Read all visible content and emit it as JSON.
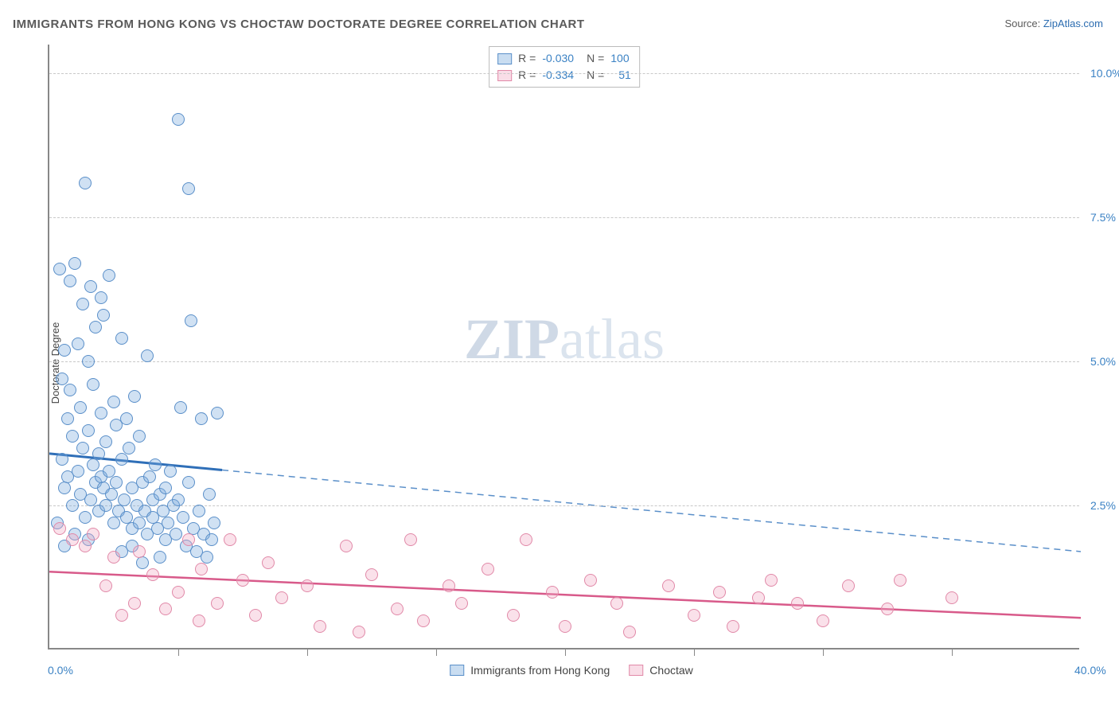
{
  "title": "IMMIGRANTS FROM HONG KONG VS CHOCTAW DOCTORATE DEGREE CORRELATION CHART",
  "source_label": "Source: ",
  "source_link": "ZipAtlas.com",
  "watermark": {
    "bold": "ZIP",
    "rest": "atlas"
  },
  "chart": {
    "type": "scatter",
    "ylabel": "Doctorate Degree",
    "xlim": [
      0,
      40
    ],
    "ylim": [
      0,
      10.5
    ],
    "x_tick_step": 5,
    "y_ticks": [
      2.5,
      5.0,
      7.5,
      10.0
    ],
    "y_tick_labels": [
      "2.5%",
      "5.0%",
      "7.5%",
      "10.0%"
    ],
    "x_label_start": "0.0%",
    "x_label_end": "40.0%",
    "background_color": "#ffffff",
    "grid_color": "#c8c8c8",
    "axis_color": "#888888",
    "label_color": "#3b82c4",
    "series": [
      {
        "name": "Immigrants from Hong Kong",
        "marker_color_fill": "rgba(120,170,220,0.35)",
        "marker_color_stroke": "#5a8fc9",
        "marker_size": 16,
        "R": "-0.030",
        "N": "100",
        "trend": {
          "y_at_x0": 3.4,
          "y_at_xmax": 1.7,
          "solid_until_x": 6.7,
          "solid_color": "#2f6fb8",
          "dash_color": "#5a8fc9",
          "width_solid": 3,
          "width_dash": 1.5
        },
        "points": [
          [
            0.3,
            2.2
          ],
          [
            0.4,
            6.6
          ],
          [
            0.5,
            4.7
          ],
          [
            0.5,
            3.3
          ],
          [
            0.6,
            5.2
          ],
          [
            0.6,
            2.8
          ],
          [
            0.7,
            3.0
          ],
          [
            0.7,
            4.0
          ],
          [
            0.8,
            6.4
          ],
          [
            0.8,
            4.5
          ],
          [
            0.9,
            2.5
          ],
          [
            0.9,
            3.7
          ],
          [
            1.0,
            6.7
          ],
          [
            1.0,
            2.0
          ],
          [
            1.1,
            5.3
          ],
          [
            1.1,
            3.1
          ],
          [
            1.2,
            4.2
          ],
          [
            1.2,
            2.7
          ],
          [
            1.3,
            6.0
          ],
          [
            1.3,
            3.5
          ],
          [
            1.4,
            8.1
          ],
          [
            1.4,
            2.3
          ],
          [
            1.5,
            5.0
          ],
          [
            1.5,
            3.8
          ],
          [
            1.6,
            6.3
          ],
          [
            1.6,
            2.6
          ],
          [
            1.7,
            4.6
          ],
          [
            1.7,
            3.2
          ],
          [
            1.8,
            2.9
          ],
          [
            1.8,
            5.6
          ],
          [
            1.9,
            3.4
          ],
          [
            1.9,
            2.4
          ],
          [
            2.0,
            4.1
          ],
          [
            2.0,
            3.0
          ],
          [
            2.1,
            2.8
          ],
          [
            2.1,
            5.8
          ],
          [
            2.2,
            3.6
          ],
          [
            2.2,
            2.5
          ],
          [
            2.3,
            6.5
          ],
          [
            2.3,
            3.1
          ],
          [
            2.4,
            2.7
          ],
          [
            2.5,
            4.3
          ],
          [
            2.5,
            2.2
          ],
          [
            2.6,
            3.9
          ],
          [
            2.6,
            2.9
          ],
          [
            2.7,
            2.4
          ],
          [
            2.8,
            5.4
          ],
          [
            2.8,
            3.3
          ],
          [
            2.9,
            2.6
          ],
          [
            3.0,
            4.0
          ],
          [
            3.0,
            2.3
          ],
          [
            3.1,
            3.5
          ],
          [
            3.2,
            2.8
          ],
          [
            3.2,
            2.1
          ],
          [
            3.3,
            4.4
          ],
          [
            3.4,
            2.5
          ],
          [
            3.5,
            3.7
          ],
          [
            3.5,
            2.2
          ],
          [
            3.6,
            2.9
          ],
          [
            3.7,
            2.4
          ],
          [
            3.8,
            5.1
          ],
          [
            3.8,
            2.0
          ],
          [
            3.9,
            3.0
          ],
          [
            4.0,
            2.6
          ],
          [
            4.0,
            2.3
          ],
          [
            4.1,
            3.2
          ],
          [
            4.2,
            2.1
          ],
          [
            4.3,
            2.7
          ],
          [
            4.4,
            2.4
          ],
          [
            4.5,
            1.9
          ],
          [
            4.5,
            2.8
          ],
          [
            4.6,
            2.2
          ],
          [
            4.7,
            3.1
          ],
          [
            4.8,
            2.5
          ],
          [
            4.9,
            2.0
          ],
          [
            5.0,
            2.6
          ],
          [
            5.1,
            4.2
          ],
          [
            5.2,
            2.3
          ],
          [
            5.3,
            1.8
          ],
          [
            5.4,
            2.9
          ],
          [
            5.5,
            5.7
          ],
          [
            5.6,
            2.1
          ],
          [
            5.7,
            1.7
          ],
          [
            5.8,
            2.4
          ],
          [
            5.9,
            4.0
          ],
          [
            6.0,
            2.0
          ],
          [
            6.1,
            1.6
          ],
          [
            6.2,
            2.7
          ],
          [
            6.3,
            1.9
          ],
          [
            6.4,
            2.2
          ],
          [
            6.5,
            4.1
          ],
          [
            2.0,
            6.1
          ],
          [
            5.4,
            8.0
          ],
          [
            5.0,
            9.2
          ],
          [
            3.2,
            1.8
          ],
          [
            4.3,
            1.6
          ],
          [
            1.5,
            1.9
          ],
          [
            0.6,
            1.8
          ],
          [
            2.8,
            1.7
          ],
          [
            3.6,
            1.5
          ]
        ]
      },
      {
        "name": "Choctaw",
        "marker_color_fill": "rgba(240,170,195,0.35)",
        "marker_color_stroke": "#e189a8",
        "marker_size": 16,
        "R": "-0.334",
        "N": "51",
        "trend": {
          "y_at_x0": 1.35,
          "y_at_xmax": 0.55,
          "solid_until_x": 40,
          "solid_color": "#d85a8a",
          "width_solid": 2.5
        },
        "points": [
          [
            0.4,
            2.1
          ],
          [
            0.9,
            1.9
          ],
          [
            1.4,
            1.8
          ],
          [
            1.7,
            2.0
          ],
          [
            2.2,
            1.1
          ],
          [
            2.5,
            1.6
          ],
          [
            2.8,
            0.6
          ],
          [
            3.3,
            0.8
          ],
          [
            3.5,
            1.7
          ],
          [
            4.0,
            1.3
          ],
          [
            4.5,
            0.7
          ],
          [
            5.0,
            1.0
          ],
          [
            5.4,
            1.9
          ],
          [
            5.8,
            0.5
          ],
          [
            6.5,
            0.8
          ],
          [
            7.0,
            1.9
          ],
          [
            7.5,
            1.2
          ],
          [
            8.0,
            0.6
          ],
          [
            8.5,
            1.5
          ],
          [
            9.0,
            0.9
          ],
          [
            10.0,
            1.1
          ],
          [
            10.5,
            0.4
          ],
          [
            11.5,
            1.8
          ],
          [
            12.0,
            0.3
          ],
          [
            12.5,
            1.3
          ],
          [
            13.5,
            0.7
          ],
          [
            14.0,
            1.9
          ],
          [
            14.5,
            0.5
          ],
          [
            15.5,
            1.1
          ],
          [
            16.0,
            0.8
          ],
          [
            17.0,
            1.4
          ],
          [
            18.0,
            0.6
          ],
          [
            18.5,
            1.9
          ],
          [
            19.5,
            1.0
          ],
          [
            20.0,
            0.4
          ],
          [
            21.0,
            1.2
          ],
          [
            22.0,
            0.8
          ],
          [
            22.5,
            0.3
          ],
          [
            24.0,
            1.1
          ],
          [
            25.0,
            0.6
          ],
          [
            26.0,
            1.0
          ],
          [
            26.5,
            0.4
          ],
          [
            27.5,
            0.9
          ],
          [
            28.0,
            1.2
          ],
          [
            29.0,
            0.8
          ],
          [
            30.0,
            0.5
          ],
          [
            31.0,
            1.1
          ],
          [
            32.5,
            0.7
          ],
          [
            33.0,
            1.2
          ],
          [
            35.0,
            0.9
          ],
          [
            5.9,
            1.4
          ]
        ]
      }
    ],
    "legend_bottom": [
      {
        "label": "Immigrants from Hong Kong",
        "swatch": "blue"
      },
      {
        "label": "Choctaw",
        "swatch": "pink"
      }
    ]
  }
}
